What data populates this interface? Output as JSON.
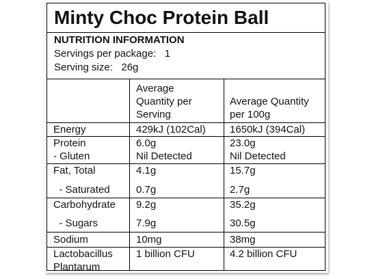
{
  "label": {
    "title": "Minty Choc Protein Ball",
    "heading": "NUTRITION INFORMATION",
    "servings_line": "Servings per package:   1",
    "serving_size_line": "Serving size:   26g"
  },
  "table": {
    "header_serving": [
      "Average",
      "Quantity per",
      "Serving"
    ],
    "header_100g": [
      "Average Quantity",
      "per 100g"
    ],
    "rows": {
      "energy": {
        "name": "Energy",
        "serving": "429kJ (102Cal)",
        "per100": "1650kJ (394Cal)"
      },
      "protein": {
        "name": "Protein",
        "serving": "6.0g",
        "per100": "23.0g"
      },
      "gluten": {
        "name": "- Gluten",
        "serving": "Nil Detected",
        "per100": "Nil Detected"
      },
      "fat": {
        "name": "Fat, Total",
        "serving": "4.1g",
        "per100": "15.7g"
      },
      "saturated": {
        "name": "  - Saturated",
        "serving": "0.7g",
        "per100": "2.7g"
      },
      "carb": {
        "name": "Carbohydrate",
        "serving": "9.2g",
        "per100": "35.2g"
      },
      "sugars": {
        "name": "  - Sugars",
        "serving": "7.9g",
        "per100": "30.5g"
      },
      "sodium": {
        "name": "Sodium",
        "serving": "10mg",
        "per100": "38mg"
      },
      "lacto": {
        "name": [
          "Lactobacillus",
          "Plantarum"
        ],
        "serving": "1 billion CFU",
        "per100": "4.2 billion CFU"
      }
    }
  }
}
